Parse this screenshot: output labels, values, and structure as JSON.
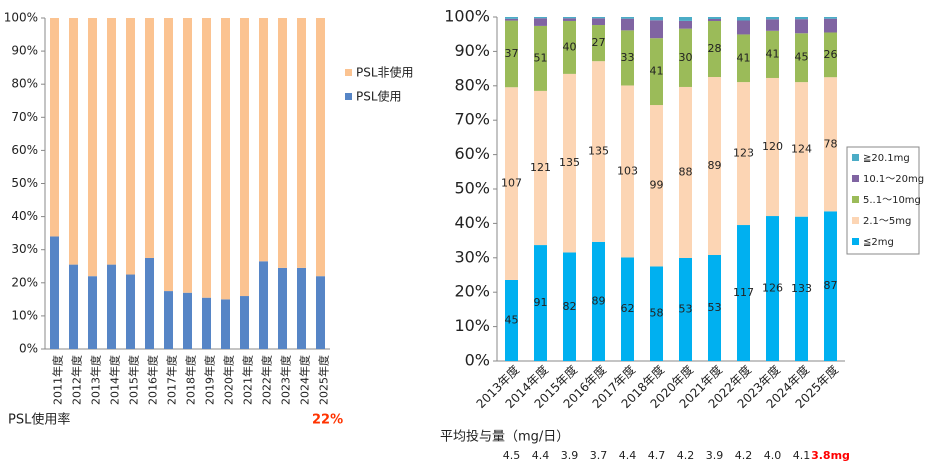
{
  "chart_data": [
    {
      "type": "bar",
      "stacked": true,
      "categories": [
        "2011年度",
        "2012年度",
        "2013年度",
        "2014年度",
        "2015年度",
        "2016年度",
        "2017年度",
        "2018年度",
        "2019年度",
        "2020年度",
        "2021年度",
        "2022年度",
        "2023年度",
        "2024年度",
        "2025年度"
      ],
      "series": [
        {
          "name": "PSL使用",
          "color": "#5685c6",
          "values": [
            34,
            25.5,
            22,
            25.5,
            22.5,
            27.5,
            17.5,
            17,
            15.5,
            15,
            16,
            26.5,
            24.5,
            24.5,
            22
          ]
        },
        {
          "name": "PSL非使用",
          "color": "#fbc391",
          "values": [
            66,
            74.5,
            78,
            74.5,
            77.5,
            72.5,
            82.5,
            83,
            84.5,
            85,
            84,
            73.5,
            75.5,
            75.5,
            78
          ]
        }
      ],
      "ylim": [
        0,
        100
      ],
      "yticks": [
        {
          "value": 0,
          "label": "0%"
        },
        {
          "value": 10,
          "label": "10%"
        },
        {
          "value": 20,
          "label": "20%"
        },
        {
          "value": 30,
          "label": "30%"
        },
        {
          "value": 40,
          "label": "40%"
        },
        {
          "value": 50,
          "label": "50%"
        },
        {
          "value": 60,
          "label": "60%"
        },
        {
          "value": 70,
          "label": "70%"
        },
        {
          "value": 80,
          "label": "80%"
        },
        {
          "value": 90,
          "label": "90%"
        },
        {
          "value": 100,
          "label": "100%"
        }
      ],
      "summary_label": "PSL使用率",
      "summary_value": "22%"
    },
    {
      "type": "bar",
      "stacked": true,
      "normalize": true,
      "categories": [
        "2013年度",
        "2014年度",
        "2015年度",
        "2016年度",
        "2017年度",
        "2018年度",
        "2020年度",
        "2021年度",
        "2022年度",
        "2023年度",
        "2024年度",
        "2025年度"
      ],
      "series": [
        {
          "name": "≦2mg",
          "color": "#00b0f0",
          "show_labels": true,
          "values": [
            45,
            91,
            82,
            89,
            62,
            58,
            53,
            53,
            117,
            126,
            133,
            87
          ]
        },
        {
          "name": "2.1～5mg",
          "color": "#fcd5b4",
          "show_labels": true,
          "values": [
            107,
            121,
            135,
            135,
            103,
            99,
            88,
            89,
            123,
            120,
            124,
            78
          ]
        },
        {
          "name": "5..1～10mg",
          "color": "#9bbb59",
          "show_labels": true,
          "values": [
            37,
            51,
            40,
            27,
            33,
            41,
            30,
            28,
            41,
            41,
            45,
            26
          ]
        },
        {
          "name": "10.1～20mg",
          "color": "#8064a2",
          "values": [
            1,
            6,
            2,
            5,
            7,
            11,
            4,
            1,
            12,
            10,
            13,
            8
          ]
        },
        {
          "name": "≧20.1mg",
          "color": "#4bacc6",
          "values": [
            1,
            1,
            1,
            1,
            1,
            2,
            2,
            1,
            3,
            2,
            2,
            1
          ]
        }
      ],
      "ylim": [
        0,
        100
      ],
      "yticks": [
        {
          "value": 0,
          "label": "0%"
        },
        {
          "value": 10,
          "label": "10%"
        },
        {
          "value": 20,
          "label": "20%"
        },
        {
          "value": 30,
          "label": "30%"
        },
        {
          "value": 40,
          "label": "40%"
        },
        {
          "value": 50,
          "label": "50%"
        },
        {
          "value": 60,
          "label": "60%"
        },
        {
          "value": 70,
          "label": "70%"
        },
        {
          "value": 80,
          "label": "80%"
        },
        {
          "value": 90,
          "label": "90%"
        },
        {
          "value": 100,
          "label": "100%"
        }
      ],
      "summary_label": "平均投与量（mg/日）",
      "summary": {
        "values": [
          4.5,
          4.4,
          3.9,
          3.7,
          4.4,
          4.7,
          4.2,
          3.9,
          4.2,
          4.0,
          4.1,
          3.8
        ],
        "value_labels": [
          "4.5",
          "4.4",
          "3.9",
          "3.7",
          "4.4",
          "4.7",
          "4.2",
          "3.9",
          "4.2",
          "4.0",
          "4.1",
          "3.8mg"
        ]
      }
    }
  ]
}
